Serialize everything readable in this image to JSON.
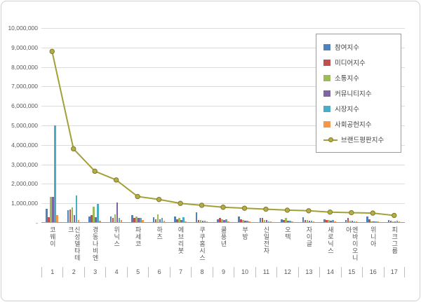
{
  "chart_data": {
    "type": "bar",
    "subtype": "grouped-bars-with-line",
    "title": "",
    "grid": true,
    "legend_position": "right-top",
    "categories": [
      "코웨이",
      "신성델타테크",
      "경동나비엔",
      "위닉스",
      "파세코",
      "하츠",
      "에브리봇",
      "쿠쿠홈시스",
      "쿨풍년",
      "부방",
      "신일전자",
      "오텍",
      "자이글",
      "새로닉스",
      "엔바이오니아",
      "위니아",
      "피크그룹"
    ],
    "rank_labels": [
      "1",
      "2",
      "3",
      "4",
      "5",
      "6",
      "7",
      "8",
      "9",
      "10",
      "11",
      "12",
      "13",
      "14",
      "15",
      "16",
      "17"
    ],
    "y_axis": {
      "max": 10000000,
      "min": 0,
      "tick_interval": 1000000,
      "tick_labels": [
        "10,000,000",
        "9,000,000",
        "8,000,000",
        "7,000,000",
        "6,000,000",
        "5,000,000",
        "4,000,000",
        "3,000,000",
        "2,000,000",
        "1,000,000",
        "-"
      ]
    },
    "series": [
      {
        "name": "참여지수",
        "color": "#4F81BD",
        "values": [
          700000,
          600000,
          300000,
          300000,
          350000,
          250000,
          300000,
          500000,
          150000,
          300000,
          200000,
          150000,
          250000,
          150000,
          100000,
          280000,
          100000
        ]
      },
      {
        "name": "미디어지수",
        "color": "#C0504D",
        "values": [
          250000,
          650000,
          350000,
          200000,
          200000,
          150000,
          150000,
          120000,
          200000,
          150000,
          200000,
          100000,
          100000,
          100000,
          200000,
          150000,
          60000
        ]
      },
      {
        "name": "소통지수",
        "color": "#9BBB59",
        "values": [
          1300000,
          750000,
          800000,
          400000,
          300000,
          400000,
          200000,
          100000,
          150000,
          100000,
          100000,
          200000,
          100000,
          100000,
          80000,
          30000,
          50000
        ]
      },
      {
        "name": "커뮤니티지수",
        "color": "#8064A2",
        "values": [
          1300000,
          350000,
          250000,
          1000000,
          200000,
          150000,
          100000,
          80000,
          100000,
          80000,
          100000,
          80000,
          80000,
          80000,
          60000,
          20000,
          40000
        ]
      },
      {
        "name": "시장지수",
        "color": "#4BACC6",
        "values": [
          4950000,
          1350000,
          950000,
          200000,
          200000,
          200000,
          250000,
          80000,
          150000,
          80000,
          50000,
          80000,
          60000,
          100000,
          50000,
          10000,
          80000
        ]
      },
      {
        "name": "사회공헌지수",
        "color": "#F79646",
        "values": [
          350000,
          100000,
          80000,
          100000,
          100000,
          80000,
          50000,
          20000,
          50000,
          40000,
          50000,
          40000,
          30000,
          20000,
          30000,
          10000,
          50000
        ]
      }
    ],
    "line_series": {
      "name": "브랜드평판지수",
      "color": "#A3A038",
      "marker_fill": "#B3AD45",
      "marker_stroke": "#7F7A2C",
      "values": [
        8800000,
        3800000,
        2650000,
        2200000,
        1350000,
        1200000,
        1000000,
        900000,
        800000,
        750000,
        700000,
        650000,
        620000,
        550000,
        520000,
        500000,
        380000
      ]
    }
  }
}
